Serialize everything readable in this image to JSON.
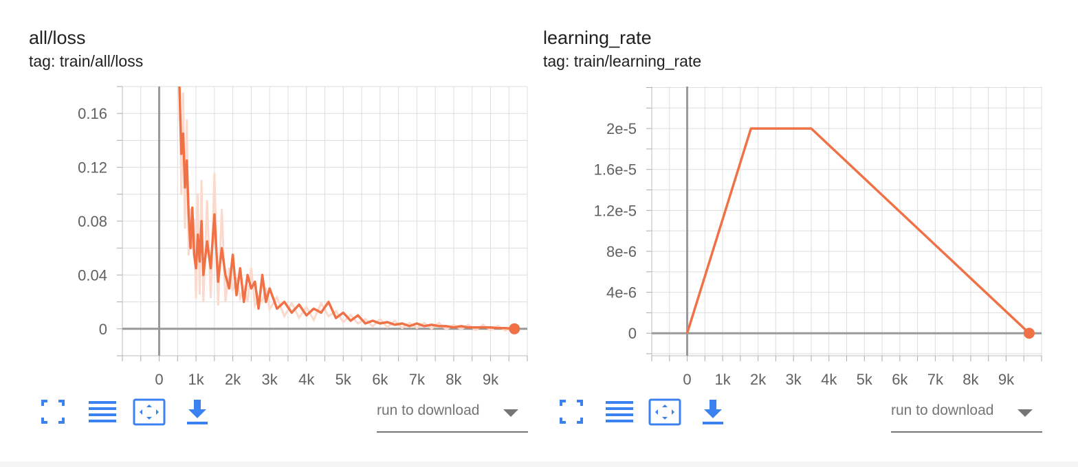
{
  "cards": [
    {
      "title": "all/loss",
      "subtitle": "tag: train/all/loss",
      "download_label": "run to download",
      "icons": {
        "fullscreen": "fullscreen-icon",
        "log_scale": "lines-icon",
        "fit_domain": "fit-domain-icon",
        "download": "download-icon"
      }
    },
    {
      "title": "learning_rate",
      "subtitle": "tag: train/learning_rate",
      "download_label": "run to download",
      "icons": {
        "fullscreen": "fullscreen-icon",
        "log_scale": "lines-icon",
        "fit_domain": "fit-domain-icon",
        "download": "download-icon"
      }
    }
  ],
  "colors": {
    "series": "#f07146",
    "series_raw": "#fbd9cc",
    "grid": "#dddddd",
    "axis": "#999999",
    "icon": "#3b82f0"
  },
  "chart_data": [
    {
      "type": "line",
      "title": "all/loss",
      "subtitle": "tag: train/all/loss",
      "xlabel": "",
      "ylabel": "",
      "xlim": [
        -1000,
        10000
      ],
      "ylim": [
        -0.02,
        0.18
      ],
      "grid": true,
      "x_ticks": [
        0,
        1000,
        2000,
        3000,
        4000,
        5000,
        6000,
        7000,
        8000,
        9000
      ],
      "x_tick_labels": [
        "0",
        "1k",
        "2k",
        "3k",
        "4k",
        "5k",
        "6k",
        "7k",
        "8k",
        "9k"
      ],
      "y_ticks": [
        0,
        0.04,
        0.08,
        0.12,
        0.16
      ],
      "y_tick_labels": [
        "0",
        "0.04",
        "0.08",
        "0.12",
        "0.16"
      ],
      "series": [
        {
          "x": [
            550,
            600,
            650,
            700,
            750,
            800,
            850,
            900,
            950,
            1000,
            1050,
            1100,
            1150,
            1200,
            1300,
            1400,
            1500,
            1600,
            1700,
            1800,
            1900,
            2000,
            2100,
            2200,
            2300,
            2400,
            2500,
            2600,
            2700,
            2800,
            2900,
            3000,
            3200,
            3400,
            3600,
            3800,
            4000,
            4200,
            4400,
            4600,
            4800,
            5000,
            5200,
            5400,
            5600,
            5800,
            6000,
            6200,
            6400,
            6600,
            6800,
            7000,
            7200,
            7400,
            7600,
            7800,
            8000,
            8200,
            8400,
            8600,
            8800,
            9000,
            9200,
            9400,
            9650
          ],
          "values": [
            0.18,
            0.13,
            0.145,
            0.105,
            0.125,
            0.085,
            0.06,
            0.09,
            0.055,
            0.045,
            0.07,
            0.05,
            0.08,
            0.04,
            0.065,
            0.045,
            0.085,
            0.035,
            0.06,
            0.04,
            0.03,
            0.055,
            0.025,
            0.045,
            0.02,
            0.04,
            0.03,
            0.035,
            0.015,
            0.04,
            0.02,
            0.03,
            0.015,
            0.02,
            0.012,
            0.018,
            0.01,
            0.015,
            0.012,
            0.02,
            0.008,
            0.012,
            0.006,
            0.01,
            0.004,
            0.006,
            0.004,
            0.005,
            0.003,
            0.004,
            0.002,
            0.004,
            0.002,
            0.003,
            0.002,
            0.002,
            0.001,
            0.002,
            0.001,
            0.001,
            0.001,
            0.001,
            0.0005,
            0.0005,
            0.0
          ]
        }
      ]
    },
    {
      "type": "line",
      "title": "learning_rate",
      "subtitle": "tag: train/learning_rate",
      "xlabel": "",
      "ylabel": "",
      "xlim": [
        -1000,
        10000
      ],
      "ylim": [
        -2.2e-06,
        2.41e-05
      ],
      "grid": true,
      "x_ticks": [
        0,
        1000,
        2000,
        3000,
        4000,
        5000,
        6000,
        7000,
        8000,
        9000
      ],
      "x_tick_labels": [
        "0",
        "1k",
        "2k",
        "3k",
        "4k",
        "5k",
        "6k",
        "7k",
        "8k",
        "9k"
      ],
      "y_ticks": [
        0,
        4e-06,
        8e-06,
        1.2e-05,
        1.6e-05,
        2e-05
      ],
      "y_tick_labels": [
        "0",
        "4e-6",
        "8e-6",
        "1.2e-5",
        "1.6e-5",
        "2e-5"
      ],
      "series": [
        {
          "x": [
            0,
            1800,
            3500,
            9650
          ],
          "values": [
            0,
            2e-05,
            2e-05,
            0
          ]
        }
      ]
    }
  ]
}
